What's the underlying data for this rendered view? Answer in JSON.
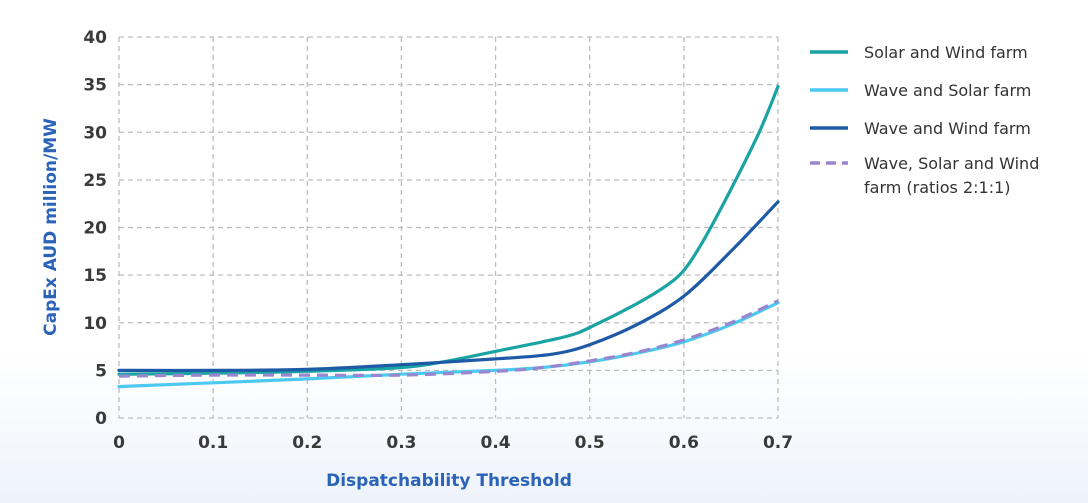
{
  "chart_data": {
    "type": "line",
    "title": "",
    "xlabel": "Dispatchability Threshold",
    "ylabel": "CapEx AUD million/MW",
    "xlim": [
      0,
      0.7
    ],
    "ylim": [
      0,
      40
    ],
    "xticks": [
      0,
      0.1,
      0.2,
      0.3,
      0.4,
      0.5,
      0.6,
      0.7
    ],
    "xtick_labels": [
      "0",
      "0.1",
      "0.2",
      "0.3",
      "0.4",
      "0.5",
      "0.6",
      "0.7"
    ],
    "yticks": [
      0,
      5,
      10,
      15,
      20,
      25,
      30,
      35,
      40
    ],
    "ytick_labels": [
      "0",
      "5",
      "10",
      "15",
      "20",
      "25",
      "30",
      "35",
      "40"
    ],
    "grid": true,
    "legend_position": "right",
    "series": [
      {
        "name": "Solar and Wind farm",
        "legend_lines": [
          "Solar and Wind farm"
        ],
        "color": "#1aa3a3",
        "style": "solid",
        "x": [
          0,
          0.1,
          0.2,
          0.3,
          0.35,
          0.4,
          0.45,
          0.48,
          0.5,
          0.55,
          0.58,
          0.6,
          0.62,
          0.65,
          0.68,
          0.7
        ],
        "y": [
          4.6,
          4.7,
          4.9,
          5.3,
          6.0,
          7.0,
          8.0,
          8.7,
          9.5,
          12.0,
          13.8,
          15.5,
          18.5,
          24.0,
          30.0,
          34.8
        ]
      },
      {
        "name": "Wave and Solar farm",
        "legend_lines": [
          "Wave and Solar farm"
        ],
        "color": "#4cc9f0",
        "style": "solid",
        "x": [
          0,
          0.1,
          0.2,
          0.3,
          0.4,
          0.45,
          0.5,
          0.55,
          0.6,
          0.65,
          0.7
        ],
        "y": [
          3.3,
          3.7,
          4.1,
          4.6,
          5.0,
          5.3,
          5.9,
          6.8,
          8.0,
          9.8,
          12.1
        ]
      },
      {
        "name": "Wave and Wind farm",
        "legend_lines": [
          "Wave and Wind farm"
        ],
        "color": "#1f5aa6",
        "style": "solid",
        "x": [
          0,
          0.1,
          0.2,
          0.3,
          0.4,
          0.46,
          0.5,
          0.55,
          0.6,
          0.65,
          0.7
        ],
        "y": [
          5.0,
          5.0,
          5.1,
          5.6,
          6.2,
          6.7,
          7.7,
          9.8,
          12.8,
          17.5,
          22.7
        ]
      },
      {
        "name": "Wave, Solar and Wind farm (ratios 2:1:1)",
        "legend_lines": [
          "Wave, Solar and Wind",
          "farm (ratios 2:1:1)"
        ],
        "color": "#9a86cf",
        "style": "dashed",
        "x": [
          0,
          0.1,
          0.2,
          0.3,
          0.4,
          0.45,
          0.5,
          0.55,
          0.6,
          0.65,
          0.7
        ],
        "y": [
          4.4,
          4.5,
          4.5,
          4.5,
          4.9,
          5.3,
          6.0,
          6.9,
          8.2,
          10.0,
          12.3
        ]
      }
    ]
  }
}
